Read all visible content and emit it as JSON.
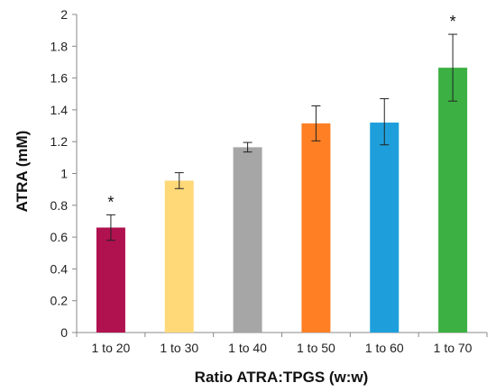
{
  "chart_data": {
    "type": "bar",
    "title": "",
    "xlabel": "Ratio ATRA:TPGS (w:w)",
    "ylabel": "ATRA  (mM)",
    "ylim": [
      0,
      2
    ],
    "yticks": [
      "0",
      "0.2",
      "0.4",
      "0.6",
      "0.8",
      "1",
      "1.2",
      "1.4",
      "1.6",
      "1.8",
      "2"
    ],
    "categories": [
      "1 to 20",
      "1 to 30",
      "1 to 40",
      "1 to 50",
      "1 to 60",
      "1 to 70"
    ],
    "values": [
      0.66,
      0.955,
      1.165,
      1.315,
      1.32,
      1.665
    ],
    "error_low": [
      0.58,
      0.905,
      1.135,
      1.205,
      1.18,
      1.455
    ],
    "error_high": [
      0.74,
      1.005,
      1.195,
      1.425,
      1.47,
      1.875
    ],
    "annotations": [
      "*",
      "",
      "",
      "",
      "",
      "*"
    ],
    "colors": [
      "#B0124F",
      "#FFD878",
      "#A6A6A6",
      "#FF7F24",
      "#1E9FDC",
      "#3CB043"
    ],
    "grid": false,
    "legend": "none"
  }
}
